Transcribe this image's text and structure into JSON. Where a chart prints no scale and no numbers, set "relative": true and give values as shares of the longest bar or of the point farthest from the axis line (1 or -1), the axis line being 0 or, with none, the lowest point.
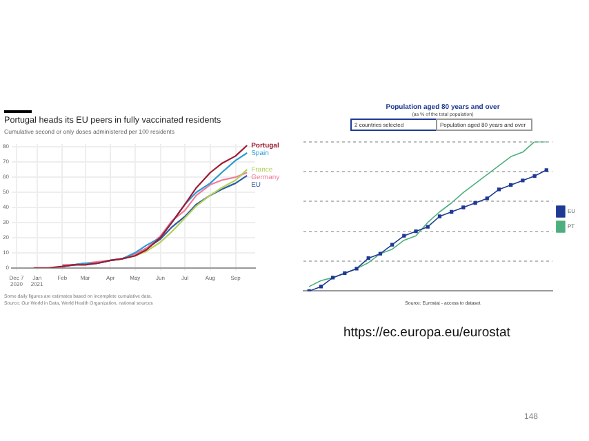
{
  "chart_data": [
    {
      "type": "line",
      "title": "Portugal heads its EU peers in fully vaccinated residents",
      "subtitle": "Cumulative second or only doses administered per 100 residents",
      "x": [
        "2020-12-28",
        "2021-01-15",
        "2021-02-01",
        "2021-02-15",
        "2021-03-01",
        "2021-03-15",
        "2021-04-01",
        "2021-04-15",
        "2021-05-01",
        "2021-05-15",
        "2021-06-01",
        "2021-06-15",
        "2021-07-01",
        "2021-07-15",
        "2021-08-01",
        "2021-08-15",
        "2021-09-01",
        "2021-09-15"
      ],
      "series": [
        {
          "name": "Portugal",
          "color": "#9e1b32",
          "values": [
            0,
            0,
            1,
            2,
            2,
            3,
            5,
            6,
            8,
            12,
            20,
            30,
            42,
            53,
            63,
            69,
            74,
            81
          ]
        },
        {
          "name": "Spain",
          "color": "#2b9bd6",
          "values": [
            null,
            null,
            1,
            2,
            3,
            3,
            5,
            6,
            10,
            15,
            20,
            30,
            42,
            50,
            56,
            63,
            71,
            76
          ]
        },
        {
          "name": "France",
          "color": "#b3d25a",
          "values": [
            null,
            null,
            null,
            null,
            null,
            null,
            null,
            6,
            8,
            11,
            17,
            24,
            33,
            41,
            48,
            53,
            58,
            65
          ]
        },
        {
          "name": "Germany",
          "color": "#f27a98",
          "values": [
            null,
            null,
            2,
            2,
            3,
            4,
            5,
            6,
            9,
            13,
            21,
            31,
            38,
            48,
            55,
            58,
            60,
            63
          ]
        },
        {
          "name": "EU",
          "color": "#2e5aa7",
          "values": [
            null,
            null,
            1,
            2,
            3,
            3,
            5,
            6,
            9,
            13,
            19,
            27,
            34,
            42,
            48,
            52,
            56,
            61
          ]
        }
      ],
      "xlim": [
        "2020-12-01",
        "2021-09-25"
      ],
      "xticks": [
        {
          "value": "2020-12-07",
          "label": "Dec 7\n2020"
        },
        {
          "value": "2021-01-01",
          "label": "Jan\n2021"
        },
        {
          "value": "2021-02-01",
          "label": "Feb"
        },
        {
          "value": "2021-03-01",
          "label": "Mar"
        },
        {
          "value": "2021-04-01",
          "label": "Apr"
        },
        {
          "value": "2021-05-01",
          "label": "May"
        },
        {
          "value": "2021-06-01",
          "label": "Jun"
        },
        {
          "value": "2021-07-01",
          "label": "Jul"
        },
        {
          "value": "2021-08-01",
          "label": "Aug"
        },
        {
          "value": "2021-09-01",
          "label": "Sep"
        }
      ],
      "ylim": [
        0,
        82
      ],
      "yticks": [
        0,
        10,
        20,
        30,
        40,
        50,
        60,
        70,
        80
      ],
      "grid": true,
      "legend": false,
      "annotations": [
        "Some daily figures are estimates based on incomplete cumulative data.",
        "Source: Our World in Data, World Health Organization, national sources"
      ]
    },
    {
      "type": "line",
      "title": "Population aged 80 years and over",
      "subtitle": "(as % of the total population)",
      "relative": true,
      "categories": [
        null,
        null,
        null,
        null,
        null,
        null,
        null,
        null,
        null,
        null,
        null,
        null,
        null,
        null,
        null,
        null,
        null,
        null,
        null,
        null,
        null
      ],
      "series": [
        {
          "name": "EU",
          "color": "#1f3a93",
          "marker": "square",
          "values": [
            0,
            0.03,
            0.09,
            0.12,
            0.15,
            0.22,
            0.25,
            0.31,
            0.37,
            0.4,
            0.43,
            0.5,
            0.53,
            0.56,
            0.59,
            0.62,
            0.68,
            0.71,
            0.74,
            0.77,
            0.81
          ]
        },
        {
          "name": "PT",
          "color": "#4caf7d",
          "marker": "none",
          "values": [
            0.03,
            0.07,
            0.09,
            0.12,
            0.15,
            0.19,
            0.25,
            0.28,
            0.34,
            0.37,
            0.46,
            0.53,
            0.59,
            0.66,
            0.72,
            0.78,
            0.84,
            0.9,
            0.93,
            1,
            1
          ]
        }
      ],
      "grid": "y",
      "legend": "right",
      "annotations": [
        "2 countries selected",
        "Population aged 80 years and over",
        "Source: Eurostat - access to dataset",
        "https://ec.europa.eu/eurostat",
        "148"
      ]
    }
  ]
}
